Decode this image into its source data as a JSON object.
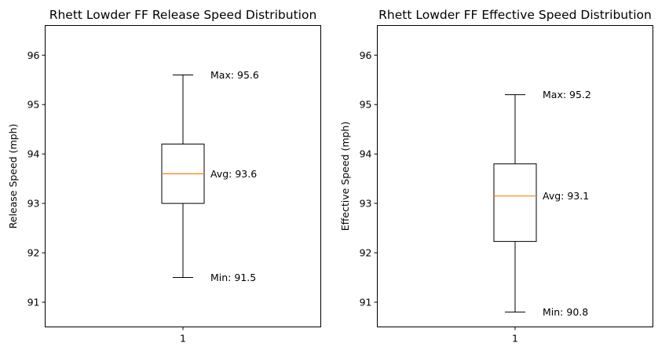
{
  "chart_data": [
    {
      "type": "box",
      "title": "Rhett Lowder FF Release Speed Distribution",
      "xlabel": "",
      "ylabel": "Release Speed (mph)",
      "categories": [
        "1"
      ],
      "ylim": [
        90.5,
        96.6
      ],
      "yticks": [
        91,
        92,
        93,
        94,
        95,
        96
      ],
      "ytick_labels": [
        "91",
        "92",
        "93",
        "94",
        "95",
        "96"
      ],
      "box": {
        "min": 91.5,
        "q1": 93.0,
        "median": 93.6,
        "q3": 94.2,
        "max": 95.6
      },
      "annotations": {
        "max": "Max: 95.6",
        "avg": "Avg: 93.6",
        "min": "Min: 91.5"
      }
    },
    {
      "type": "box",
      "title": "Rhett Lowder FF Effective Speed Distribution",
      "xlabel": "",
      "ylabel": "Effective Speed (mph)",
      "categories": [
        "1"
      ],
      "ylim": [
        90.5,
        96.6
      ],
      "yticks": [
        91,
        92,
        93,
        94,
        95,
        96
      ],
      "ytick_labels": [
        "91",
        "92",
        "93",
        "94",
        "95",
        "96"
      ],
      "box": {
        "min": 90.8,
        "q1": 92.23,
        "median": 93.15,
        "q3": 93.8,
        "max": 95.2
      },
      "annotations": {
        "max": "Max: 95.2",
        "avg": "Avg: 93.1",
        "min": "Min: 90.8"
      }
    }
  ],
  "colors": {
    "median": "#ff7f0e",
    "stroke": "#000000"
  }
}
